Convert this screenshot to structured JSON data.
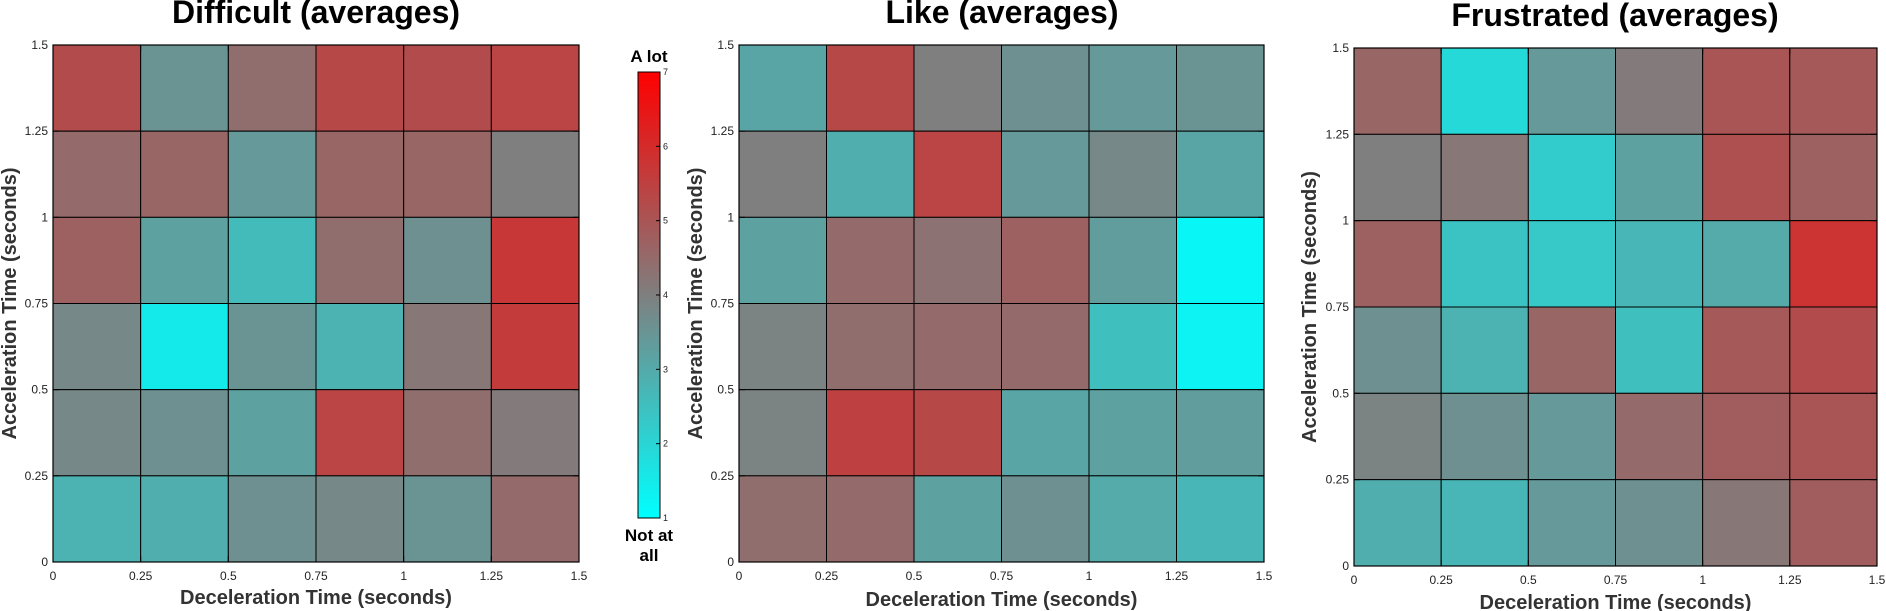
{
  "chart_data": [
    {
      "type": "heatmap",
      "title": "Difficult (averages)",
      "xlabel": "Deceleration Time (seconds)",
      "ylabel": "Acceleration Time (seconds)",
      "x_ticks": [
        "0",
        "0.25",
        "0.5",
        "0.75",
        "1",
        "1.25",
        "1.5"
      ],
      "y_ticks": [
        "0",
        "0.25",
        "0.5",
        "0.75",
        "1",
        "1.25",
        "1.5"
      ],
      "xlim": [
        0,
        1.5
      ],
      "ylim": [
        0,
        1.5
      ],
      "x_bins": [
        0,
        0.25,
        0.5,
        0.75,
        1,
        1.25
      ],
      "y_bins_top_to_bottom": [
        1.25,
        1,
        0.75,
        0.5,
        0.25,
        0
      ],
      "values_top_to_bottom": [
        [
          5.2,
          3.5,
          4.4,
          5.3,
          5.2,
          5.4
        ],
        [
          4.5,
          4.6,
          3.4,
          4.6,
          4.6,
          4.0
        ],
        [
          4.7,
          3.2,
          2.6,
          4.4,
          3.6,
          5.7
        ],
        [
          3.8,
          1.5,
          3.5,
          2.8,
          4.2,
          5.6
        ],
        [
          3.8,
          3.6,
          3.2,
          5.4,
          4.4,
          4.1
        ],
        [
          2.8,
          2.9,
          3.6,
          3.8,
          3.5,
          4.5
        ]
      ]
    },
    {
      "type": "heatmap",
      "title": "Like (averages)",
      "xlabel": "Deceleration Time (seconds)",
      "ylabel": "Acceleration Time (seconds)",
      "x_ticks": [
        "0",
        "0.25",
        "0.5",
        "0.75",
        "1",
        "1.25",
        "1.5"
      ],
      "y_ticks": [
        "0",
        "0.25",
        "0.5",
        "0.75",
        "1",
        "1.25",
        "1.5"
      ],
      "xlim": [
        0,
        1.5
      ],
      "ylim": [
        0,
        1.5
      ],
      "x_bins": [
        0,
        0.25,
        0.5,
        0.75,
        1,
        1.25
      ],
      "y_bins_top_to_bottom": [
        1.25,
        1,
        0.75,
        0.5,
        0.25,
        0
      ],
      "values_top_to_bottom": [
        [
          3.1,
          5.3,
          4.0,
          3.6,
          3.4,
          3.5
        ],
        [
          4.0,
          2.9,
          5.4,
          3.4,
          3.8,
          3.1
        ],
        [
          3.2,
          4.5,
          4.3,
          4.7,
          3.3,
          1.2
        ],
        [
          3.9,
          4.4,
          4.5,
          4.5,
          2.5,
          1.3
        ],
        [
          3.9,
          5.5,
          5.3,
          3.1,
          3.2,
          3.3
        ],
        [
          4.4,
          4.5,
          3.2,
          3.6,
          3.0,
          2.7
        ]
      ]
    },
    {
      "type": "heatmap",
      "title": "Frustrated (averages)",
      "xlabel": "Deceleration Time (seconds)",
      "ylabel": "Acceleration Time (seconds)",
      "x_ticks": [
        "0",
        "0.25",
        "0.5",
        "0.75",
        "1",
        "1.25",
        "1.5"
      ],
      "y_ticks": [
        "0",
        "0.25",
        "0.5",
        "0.75",
        "1",
        "1.25",
        "1.5"
      ],
      "xlim": [
        0,
        1.5
      ],
      "ylim": [
        0,
        1.5
      ],
      "x_bins": [
        0,
        0.25,
        0.5,
        0.75,
        1,
        1.25
      ],
      "y_bins_top_to_bottom": [
        1.25,
        1,
        0.75,
        0.5,
        0.25,
        0
      ],
      "values_top_to_bottom": [
        [
          4.6,
          1.9,
          3.4,
          4.1,
          5.0,
          4.9
        ],
        [
          4.0,
          4.2,
          2.2,
          3.2,
          5.1,
          4.7
        ],
        [
          4.7,
          2.4,
          2.3,
          2.7,
          3.0,
          5.8
        ],
        [
          3.6,
          2.8,
          4.6,
          2.5,
          4.9,
          5.2
        ],
        [
          3.9,
          3.6,
          3.4,
          4.5,
          4.8,
          5.0
        ],
        [
          2.9,
          2.7,
          3.4,
          3.6,
          4.2,
          4.8
        ]
      ]
    }
  ],
  "colorbar": {
    "top_label": "A lot",
    "bottom_label_line1": "Not at",
    "bottom_label_line2": "all",
    "ticks": [
      "1",
      "2",
      "3",
      "4",
      "5",
      "6",
      "7"
    ],
    "min": 1,
    "max": 7,
    "colors": {
      "low": "#00ffff",
      "mid": "#7f7f7f",
      "high": "#ff0000"
    }
  }
}
